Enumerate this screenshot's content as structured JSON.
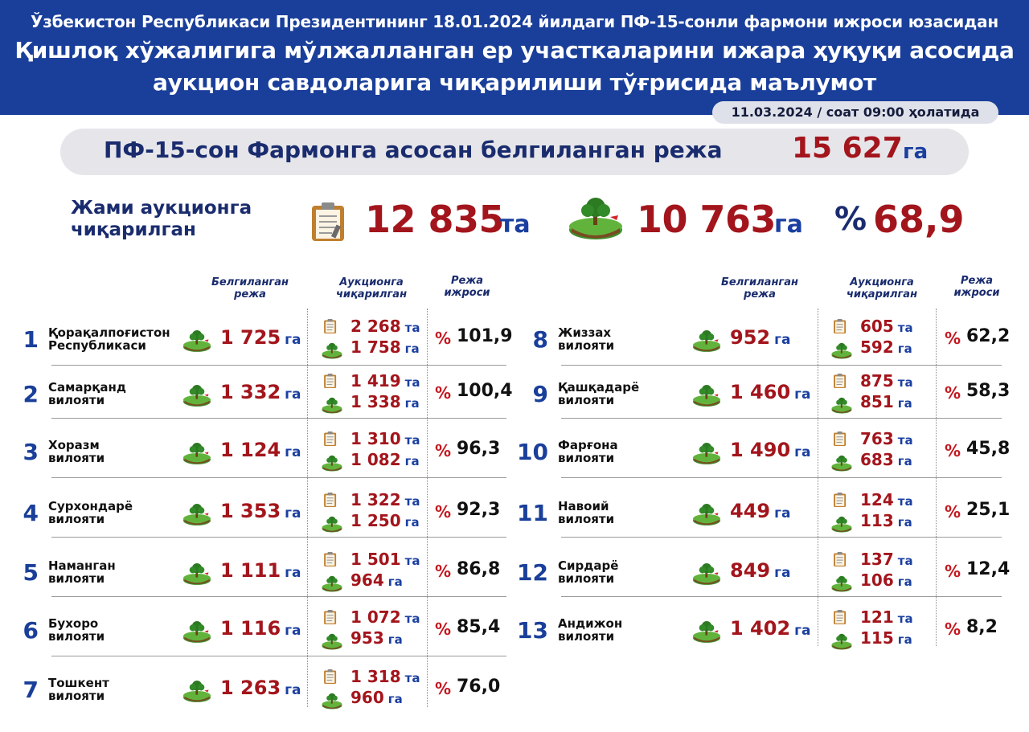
{
  "header": {
    "line1": "Ўзбекистон Республикаси Президентининг 18.01.2024 йилдаги ПФ-15-сонли фармони ижроси юзасидан",
    "line2": "Қишлоқ хўжалигига мўлжалланган ер участкаларини ижара ҳуқуқи асосида",
    "line3": "аукцион савдоларига чиқарилиши тўғрисида маълумот"
  },
  "date": "11.03.2024 / соат 09:00 ҳолатида",
  "plan": {
    "label": "ПФ-15-сон Фармонга асосан белгиланган режа",
    "value": "15 627",
    "unit": "га"
  },
  "summary": {
    "label_line1": "Жами аукционга",
    "label_line2": "чиқарилган",
    "auctioned": "12 835",
    "auctioned_unit": "та",
    "area": "10 763",
    "area_unit": "га",
    "percent_symbol": "%",
    "percent": "68,9"
  },
  "columns": {
    "plan_line1": "Белгиланган",
    "plan_line2": "режа",
    "auction_line1": "Аукционга",
    "auction_line2": "чиқарилган",
    "exec_line1": "Режа",
    "exec_line2": "ижроси"
  },
  "units": {
    "ha": "га",
    "pcs": "та",
    "percent": "%"
  },
  "colors": {
    "header_bg": "#1a3f9a",
    "value_red": "#a3151c",
    "unit_blue": "#1a3fa0",
    "number_blue": "#1a3f9a"
  },
  "regions": [
    {
      "num": "1",
      "name1": "Қорақалпоғистон",
      "name2": "Республикаси",
      "plan": "1 725",
      "auction": "2 268",
      "area": "1 758",
      "pct": "101,9"
    },
    {
      "num": "2",
      "name1": "Самарқанд",
      "name2": "вилояти",
      "plan": "1 332",
      "auction": "1 419",
      "area": "1 338",
      "pct": "100,4"
    },
    {
      "num": "3",
      "name1": "Хоразм",
      "name2": "вилояти",
      "plan": "1 124",
      "auction": "1 310",
      "area": "1 082",
      "pct": "96,3"
    },
    {
      "num": "4",
      "name1": "Сурхондарё",
      "name2": "вилояти",
      "plan": "1 353",
      "auction": "1 322",
      "area": "1 250",
      "pct": "92,3"
    },
    {
      "num": "5",
      "name1": "Наманган",
      "name2": "вилояти",
      "plan": "1 111",
      "auction": "1 501",
      "area": "964",
      "pct": "86,8"
    },
    {
      "num": "6",
      "name1": "Бухоро",
      "name2": "вилояти",
      "plan": "1 116",
      "auction": "1 072",
      "area": "953",
      "pct": "85,4"
    },
    {
      "num": "7",
      "name1": "Тошкент",
      "name2": "вилояти",
      "plan": "1 263",
      "auction": "1 318",
      "area": "960",
      "pct": "76,0"
    },
    {
      "num": "8",
      "name1": "Жиззах",
      "name2": "вилояти",
      "plan": "952",
      "auction": "605",
      "area": "592",
      "pct": "62,2"
    },
    {
      "num": "9",
      "name1": "Қашқадарё",
      "name2": "вилояти",
      "plan": "1 460",
      "auction": "875",
      "area": "851",
      "pct": "58,3"
    },
    {
      "num": "10",
      "name1": "Фарғона",
      "name2": "вилояти",
      "plan": "1 490",
      "auction": "763",
      "area": "683",
      "pct": "45,8"
    },
    {
      "num": "11",
      "name1": "Навоий",
      "name2": "вилояти",
      "plan": "449",
      "auction": "124",
      "area": "113",
      "pct": "25,1"
    },
    {
      "num": "12",
      "name1": "Сирдарё",
      "name2": "вилояти",
      "plan": "849",
      "auction": "137",
      "area": "106",
      "pct": "12,4"
    },
    {
      "num": "13",
      "name1": "Андижон",
      "name2": "вилояти",
      "plan": "1 402",
      "auction": "121",
      "area": "115",
      "pct": "8,2"
    }
  ]
}
